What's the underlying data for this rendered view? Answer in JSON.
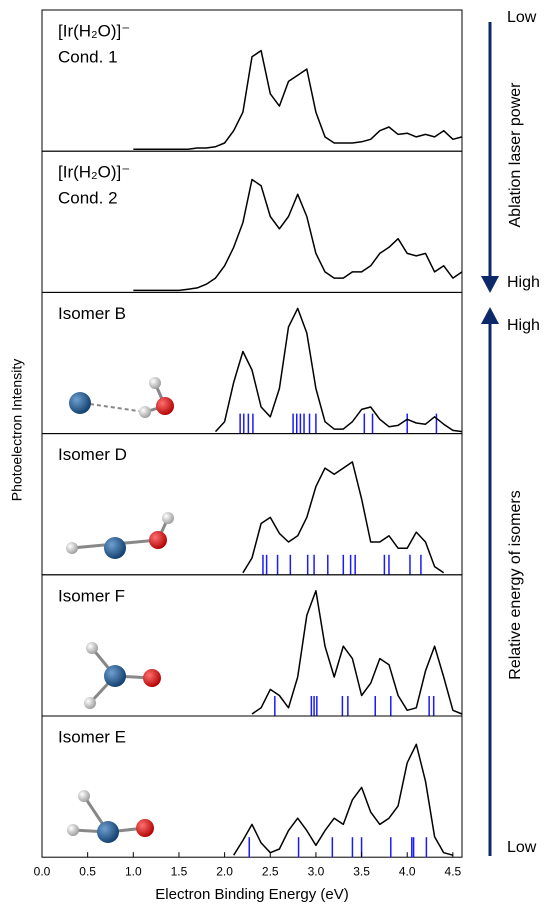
{
  "ylabel": "Photoelectron Intensity",
  "annotations": {
    "power_low": "Low",
    "power_high": "High",
    "power_label": "Ablation laser power",
    "energy_high": "High",
    "energy_low": "Low",
    "energy_label": "Relative energy of isomers"
  },
  "chart_data": [
    {
      "type": "line",
      "title": "[Ir(H₂O)]⁻",
      "subtitle": "Cond. 1",
      "color": "#000000",
      "ylim": [
        0,
        1
      ],
      "xlim": [
        0,
        4.6
      ],
      "x": [
        1.0,
        1.1,
        1.2,
        1.3,
        1.4,
        1.5,
        1.6,
        1.7,
        1.8,
        1.9,
        2.0,
        2.1,
        2.2,
        2.3,
        2.4,
        2.5,
        2.6,
        2.7,
        2.8,
        2.9,
        3.0,
        3.1,
        3.2,
        3.3,
        3.4,
        3.5,
        3.6,
        3.7,
        3.8,
        3.9,
        4.0,
        4.1,
        4.2,
        4.3,
        4.4,
        4.5,
        4.6
      ],
      "values": [
        0,
        0,
        0,
        0,
        0,
        0,
        0,
        0.01,
        0.01,
        0.02,
        0.05,
        0.15,
        0.3,
        0.75,
        0.8,
        0.45,
        0.35,
        0.55,
        0.6,
        0.65,
        0.3,
        0.1,
        0.05,
        0.05,
        0.05,
        0.06,
        0.08,
        0.15,
        0.18,
        0.12,
        0.13,
        0.1,
        0.12,
        0.1,
        0.15,
        0.08,
        0.1
      ]
    },
    {
      "type": "line",
      "title": "[Ir(H₂O)]⁻",
      "subtitle": "Cond. 2",
      "color": "#000000",
      "ylim": [
        0,
        1
      ],
      "xlim": [
        0,
        4.6
      ],
      "x": [
        1.0,
        1.1,
        1.2,
        1.3,
        1.4,
        1.5,
        1.6,
        1.7,
        1.8,
        1.9,
        2.0,
        2.1,
        2.2,
        2.3,
        2.4,
        2.5,
        2.6,
        2.7,
        2.8,
        2.9,
        3.0,
        3.1,
        3.2,
        3.3,
        3.4,
        3.5,
        3.6,
        3.7,
        3.8,
        3.9,
        4.0,
        4.1,
        4.2,
        4.3,
        4.4,
        4.5,
        4.6
      ],
      "values": [
        0,
        0,
        0,
        0,
        0,
        0,
        0.01,
        0.02,
        0.05,
        0.1,
        0.2,
        0.35,
        0.55,
        0.9,
        0.85,
        0.6,
        0.5,
        0.6,
        0.78,
        0.6,
        0.3,
        0.15,
        0.1,
        0.1,
        0.15,
        0.15,
        0.2,
        0.3,
        0.35,
        0.42,
        0.3,
        0.28,
        0.3,
        0.15,
        0.2,
        0.1,
        0.15
      ]
    },
    {
      "type": "line",
      "title": "Isomer B",
      "color": "#000000",
      "stick_color": "#1a1aff",
      "ylim": [
        0,
        1
      ],
      "xlim": [
        0,
        4.6
      ],
      "x": [
        1.9,
        2.0,
        2.1,
        2.2,
        2.3,
        2.4,
        2.5,
        2.6,
        2.7,
        2.8,
        2.9,
        3.0,
        3.1,
        3.2,
        3.3,
        3.4,
        3.5,
        3.6,
        3.7,
        3.8,
        3.9,
        4.0,
        4.1,
        4.2,
        4.3,
        4.4,
        4.5,
        4.6
      ],
      "values": [
        0,
        0.08,
        0.4,
        0.65,
        0.5,
        0.2,
        0.12,
        0.35,
        0.85,
        1.0,
        0.8,
        0.35,
        0.08,
        0.02,
        0.02,
        0.08,
        0.18,
        0.2,
        0.1,
        0.04,
        0.05,
        0.1,
        0.07,
        0.06,
        0.12,
        0.06,
        0.01,
        0
      ],
      "sticks": [
        2.17,
        2.21,
        2.26,
        2.31,
        2.75,
        2.79,
        2.83,
        2.87,
        2.93,
        3.0,
        3.53,
        3.62,
        4.0,
        4.32
      ]
    },
    {
      "type": "line",
      "title": "Isomer D",
      "color": "#000000",
      "stick_color": "#1a1aff",
      "ylim": [
        0,
        1
      ],
      "xlim": [
        0,
        4.6
      ],
      "x": [
        2.2,
        2.3,
        2.4,
        2.5,
        2.6,
        2.7,
        2.8,
        2.9,
        3.0,
        3.1,
        3.2,
        3.3,
        3.4,
        3.5,
        3.6,
        3.7,
        3.8,
        3.9,
        4.0,
        4.1,
        4.2,
        4.3,
        4.4
      ],
      "values": [
        0,
        0.12,
        0.4,
        0.45,
        0.32,
        0.25,
        0.3,
        0.45,
        0.7,
        0.85,
        0.8,
        0.85,
        0.9,
        0.6,
        0.25,
        0.25,
        0.3,
        0.2,
        0.2,
        0.33,
        0.25,
        0.05,
        0
      ],
      "sticks": [
        2.42,
        2.46,
        2.58,
        2.72,
        2.91,
        2.98,
        3.13,
        3.3,
        3.38,
        3.43,
        3.75,
        3.8,
        4.03,
        4.15
      ]
    },
    {
      "type": "line",
      "title": "Isomer F",
      "color": "#000000",
      "stick_color": "#1a1aff",
      "ylim": [
        0,
        1
      ],
      "xlim": [
        0,
        4.6
      ],
      "x": [
        2.3,
        2.4,
        2.5,
        2.6,
        2.7,
        2.8,
        2.9,
        3.0,
        3.1,
        3.2,
        3.3,
        3.4,
        3.5,
        3.6,
        3.7,
        3.8,
        3.9,
        4.0,
        4.1,
        4.2,
        4.3,
        4.4,
        4.5,
        4.6
      ],
      "values": [
        0,
        0.05,
        0.2,
        0.15,
        0.05,
        0.3,
        0.8,
        1.0,
        0.55,
        0.3,
        0.55,
        0.45,
        0.15,
        0.25,
        0.45,
        0.4,
        0.15,
        0.03,
        0.05,
        0.35,
        0.55,
        0.3,
        0.03,
        0
      ],
      "sticks": [
        2.55,
        2.95,
        2.98,
        3.01,
        3.29,
        3.35,
        3.65,
        3.82,
        4.24,
        4.29
      ]
    },
    {
      "type": "line",
      "title": "Isomer E",
      "color": "#000000",
      "stick_color": "#1a1aff",
      "ylim": [
        0,
        1
      ],
      "xlim": [
        0,
        4.6
      ],
      "xlabel": "Electron Binding Energy (eV)",
      "xticks": [
        {
          "value": 0,
          "label": "0.0"
        },
        0.5,
        {
          "value": 1,
          "label": "1.0"
        },
        1.5,
        {
          "value": 2,
          "label": "2.0"
        },
        2.5,
        {
          "value": 3,
          "label": "3.0"
        },
        3.5,
        {
          "value": 4,
          "label": "4.0"
        },
        4.5
      ],
      "x": [
        2.1,
        2.2,
        2.3,
        2.4,
        2.5,
        2.6,
        2.7,
        2.8,
        2.9,
        3.0,
        3.1,
        3.2,
        3.3,
        3.4,
        3.5,
        3.6,
        3.7,
        3.8,
        3.9,
        4.0,
        4.1,
        4.2,
        4.3,
        4.4,
        4.5
      ],
      "values": [
        0,
        0.12,
        0.25,
        0.1,
        0.02,
        0.05,
        0.2,
        0.3,
        0.2,
        0.08,
        0.2,
        0.3,
        0.25,
        0.45,
        0.55,
        0.35,
        0.25,
        0.3,
        0.4,
        0.75,
        0.9,
        0.6,
        0.15,
        0.02,
        0
      ],
      "sticks": [
        2.27,
        2.81,
        3.18,
        3.4,
        3.5,
        3.82,
        4.05,
        4.07,
        4.21
      ]
    }
  ]
}
